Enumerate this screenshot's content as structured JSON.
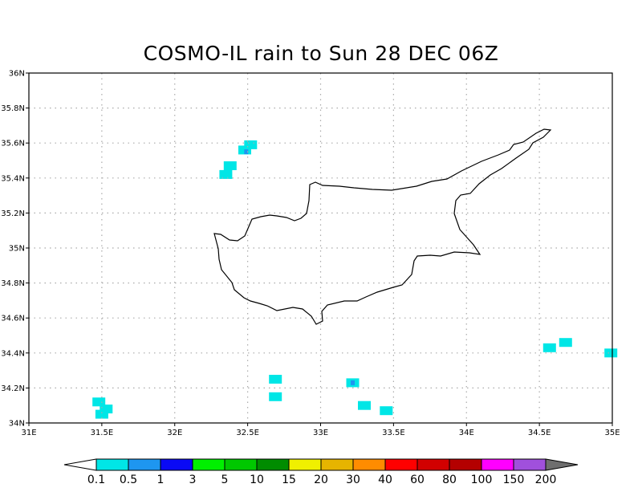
{
  "title": "COSMO-IL rain to Sun 28 DEC 06Z",
  "map": {
    "lon_range": [
      31,
      35
    ],
    "lat_range": [
      34,
      36
    ],
    "x_ticks": [
      "31E",
      "31.5E",
      "32E",
      "32.5E",
      "33E",
      "33.5E",
      "34E",
      "34.5E",
      "35E"
    ],
    "y_ticks": [
      "34N",
      "34.2N",
      "34.4N",
      "34.6N",
      "34.8N",
      "35N",
      "35.2N",
      "35.4N",
      "35.6N",
      "35.8N",
      "36N"
    ],
    "grid": true,
    "coastline": "Cyprus"
  },
  "colorbar": {
    "labels": [
      "0.1",
      "0.5",
      "1",
      "3",
      "5",
      "10",
      "15",
      "20",
      "30",
      "40",
      "60",
      "80",
      "100",
      "150",
      "200"
    ],
    "colors": [
      "#00e6e6",
      "#1e96f0",
      "#0a0af5",
      "#00f000",
      "#00c800",
      "#008c00",
      "#f0f000",
      "#e6b400",
      "#ff8c00",
      "#ff0000",
      "#d20000",
      "#b40000",
      "#ff00ff",
      "#a050dc"
    ],
    "under_color": "#ffffff",
    "over_color": "#6e6e6e"
  },
  "rain_cells": [
    {
      "lon": 32.52,
      "lat": 35.59,
      "bin": 0
    },
    {
      "lon": 32.48,
      "lat": 35.56,
      "bin": 0
    },
    {
      "lon": 32.49,
      "lat": 35.55,
      "bin": 1
    },
    {
      "lon": 32.38,
      "lat": 35.47,
      "bin": 0
    },
    {
      "lon": 32.35,
      "lat": 35.42,
      "bin": 0
    },
    {
      "lon": 31.48,
      "lat": 34.12,
      "bin": 0
    },
    {
      "lon": 31.53,
      "lat": 34.08,
      "bin": 0
    },
    {
      "lon": 31.5,
      "lat": 34.05,
      "bin": 0
    },
    {
      "lon": 32.69,
      "lat": 34.25,
      "bin": 0
    },
    {
      "lon": 32.69,
      "lat": 34.15,
      "bin": 0
    },
    {
      "lon": 33.22,
      "lat": 34.23,
      "bin": 0
    },
    {
      "lon": 33.22,
      "lat": 34.23,
      "bin": 1
    },
    {
      "lon": 33.3,
      "lat": 34.1,
      "bin": 0
    },
    {
      "lon": 33.45,
      "lat": 34.07,
      "bin": 0
    },
    {
      "lon": 34.57,
      "lat": 34.43,
      "bin": 0
    },
    {
      "lon": 34.68,
      "lat": 34.46,
      "bin": 0
    },
    {
      "lon": 34.99,
      "lat": 34.4,
      "bin": 0
    }
  ]
}
